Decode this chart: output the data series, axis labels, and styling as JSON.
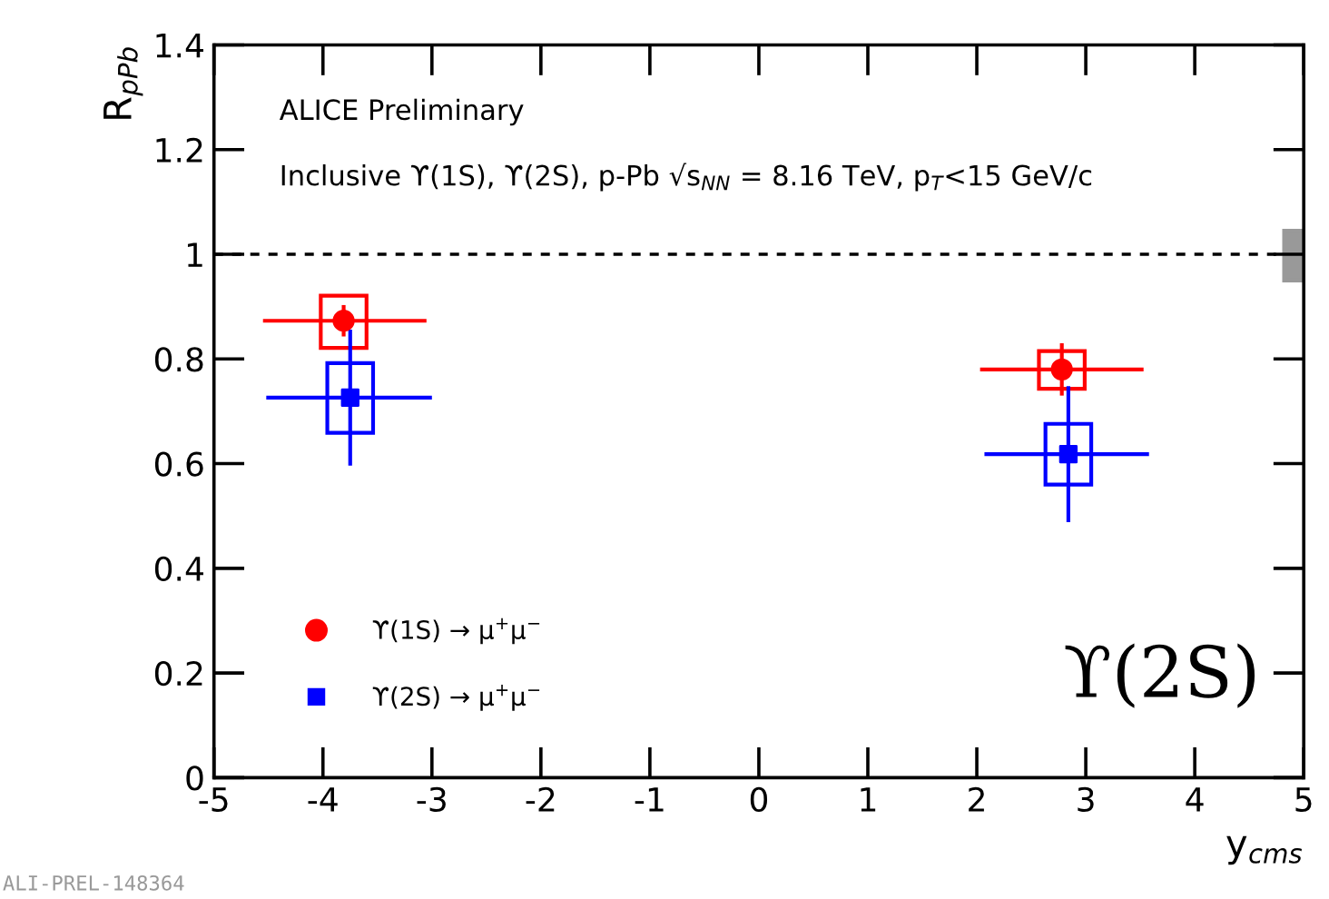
{
  "chart_data": {
    "type": "scatter",
    "xlabel": "y$_{cms}$",
    "ylabel": "R$_{pPb}$",
    "xlim": [
      -5,
      5
    ],
    "ylim": [
      0,
      1.4
    ],
    "xticks": [
      -5,
      -4,
      -3,
      -2,
      -1,
      0,
      1,
      2,
      3,
      4,
      5
    ],
    "yticks": [
      0,
      0.2,
      0.4,
      0.6,
      0.8,
      1,
      1.2,
      1.4
    ],
    "legend": "bottom left",
    "grid": false,
    "series": [
      {
        "name": "ϒ(1S) → μ$^{+}$μ$^{−}$",
        "color": "#ff0000",
        "marker": "circle",
        "x": [
          -3.81,
          2.78
        ],
        "values": [
          0.873,
          0.78
        ],
        "errors": [
          0.03,
          0.05
        ],
        "xerrors": [
          [
            -4.55,
            -3.05
          ],
          [
            2.03,
            3.53
          ]
        ]
      },
      {
        "name": "ϒ(2S) → μ$^{+}$μ$^{−}$",
        "color": "#0000ff",
        "marker": "square",
        "x": [
          -3.75,
          2.84
        ],
        "values": [
          0.726,
          0.618
        ],
        "errors": [
          0.13,
          0.13
        ],
        "xerrors": [
          [
            -4.52,
            -3.0
          ],
          [
            2.07,
            3.58
          ]
        ]
      },
      {
        "type": "bar",
        "color": "#ff0000",
        "x": [
          -3.81,
          2.78
        ],
        "base": [
          0.821,
          0.743
        ],
        "values": [
          0.1,
          0.072
        ]
      },
      {
        "type": "bar",
        "color": "#0000ff",
        "x": [
          -3.75,
          2.84
        ],
        "base": [
          0.659,
          0.56
        ],
        "values": [
          0.133,
          0.116
        ]
      },
      {
        "type": "bar",
        "color": "#999999",
        "x": [
          4.92
        ],
        "base": [
          0.95
        ],
        "values": [
          0.095
        ]
      }
    ],
    "ref_lines": [
      {
        "axis": "y",
        "value": 1,
        "color": "#000000",
        "line_style": "dashed"
      }
    ],
    "annotations": [
      "ALICE Preliminary",
      "Inclusive ϒ(1S), ϒ(2S), p-Pb √s$_{NN}$ = 8.16 TeV, p$_{T}$<15 GeV/c",
      "ϒ(2S)",
      "ALI-PREL-148364"
    ]
  }
}
